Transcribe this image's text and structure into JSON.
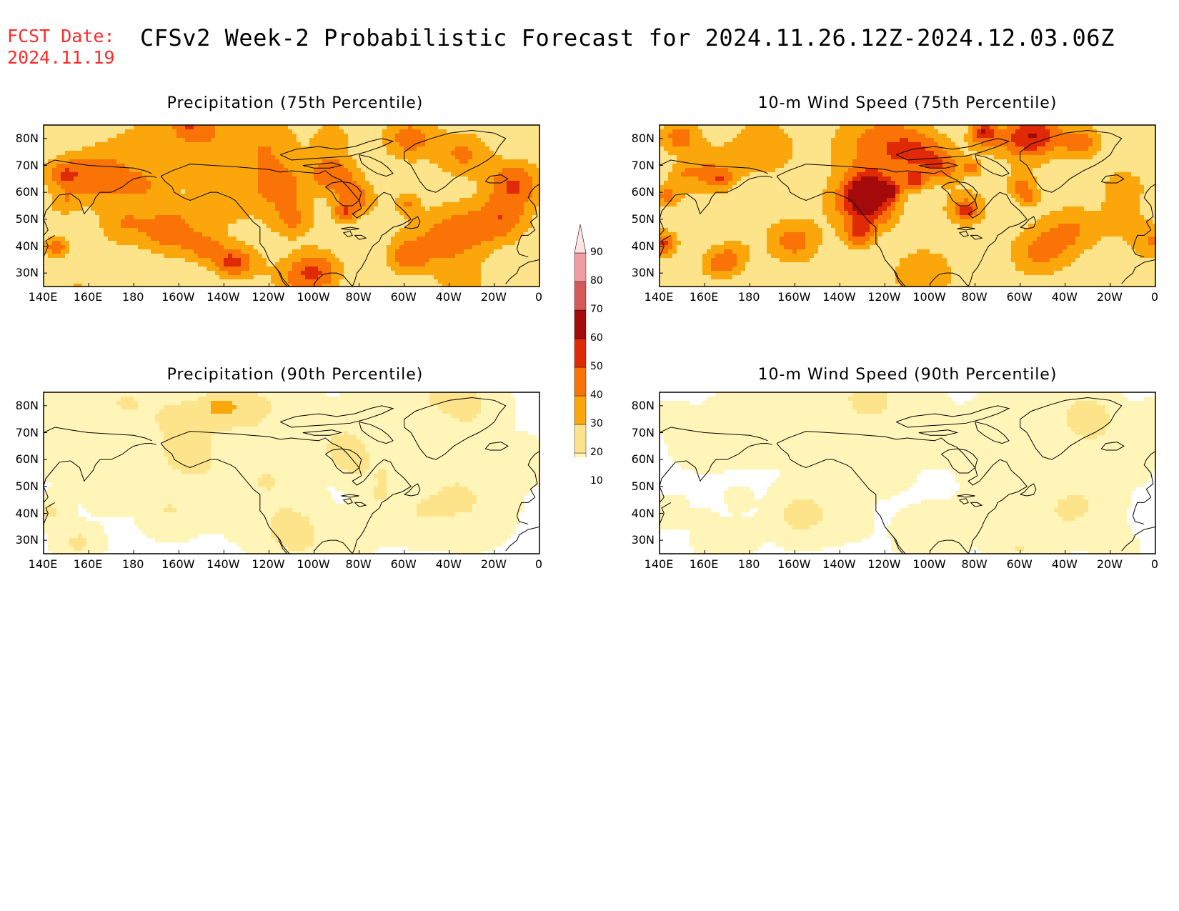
{
  "header": {
    "fcst_label": "FCST Date:",
    "fcst_date": "2024.11.19",
    "title": "CFSv2 Week-2 Probabilistic Forecast for 2024.11.26.12Z-2024.12.03.06Z"
  },
  "panels": [
    {
      "id": "p1",
      "title": "Precipitation (75th Percentile)",
      "intensity": 1.0,
      "seed": 11
    },
    {
      "id": "p2",
      "title": "10-m Wind Speed (75th Percentile)",
      "intensity": 1.0,
      "seed": 23
    },
    {
      "id": "p3",
      "title": "Precipitation (90th Percentile)",
      "intensity": 0.45,
      "seed": 37
    },
    {
      "id": "p4",
      "title": "10-m Wind Speed (90th Percentile)",
      "intensity": 0.4,
      "seed": 51
    }
  ],
  "axes": {
    "lat_labels": [
      "80N",
      "70N",
      "60N",
      "50N",
      "40N",
      "30N"
    ],
    "lon_labels": [
      "140E",
      "160E",
      "180",
      "160W",
      "140W",
      "120W",
      "100W",
      "80W",
      "60W",
      "40W",
      "20W",
      "0"
    ]
  },
  "colorbar": {
    "levels": [
      "10",
      "20",
      "30",
      "40",
      "50",
      "60",
      "70",
      "80",
      "90"
    ],
    "colors": [
      "#fff5b8",
      "#fde38a",
      "#fba70c",
      "#f97306",
      "#e02a06",
      "#a50a0a",
      "#d45a5a",
      "#f09ca0",
      "#ffe4e4"
    ]
  }
}
